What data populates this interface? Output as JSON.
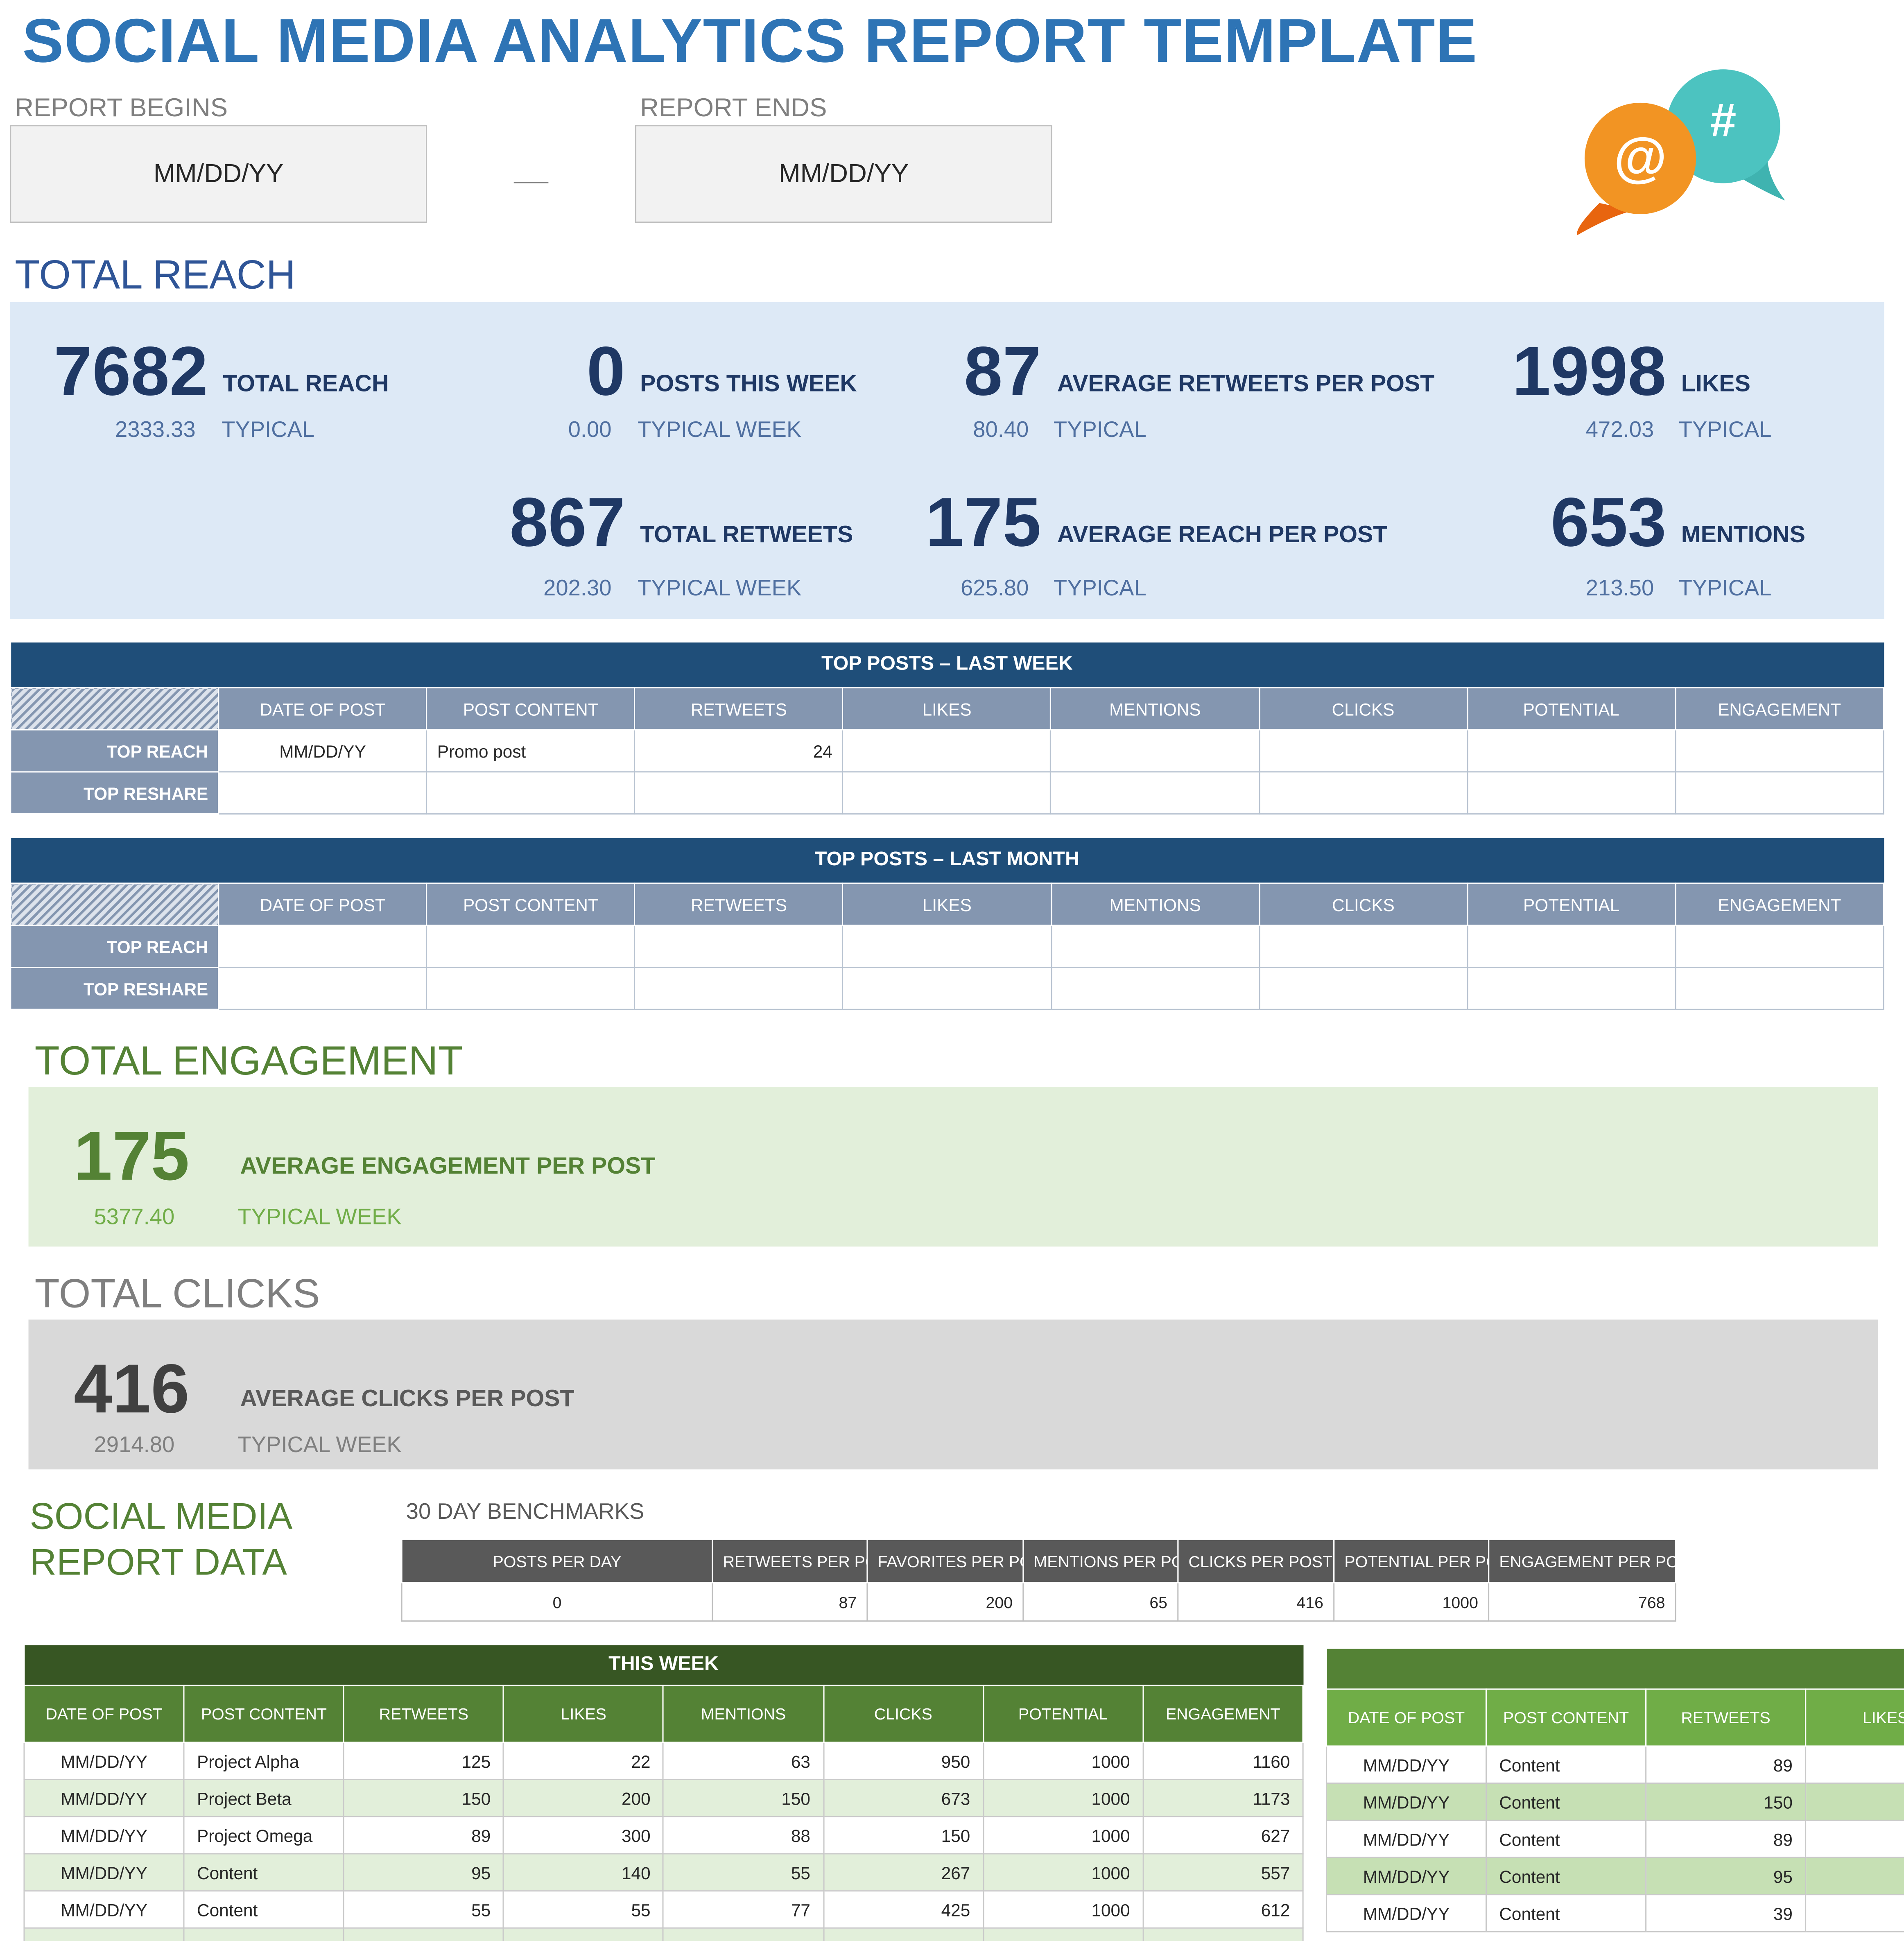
{
  "title": "SOCIAL MEDIA ANALYTICS REPORT TEMPLATE",
  "dates": {
    "begins_label": "REPORT BEGINS",
    "begins_value": "MM/DD/YY",
    "ends_label": "REPORT ENDS",
    "ends_value": "MM/DD/YY"
  },
  "colors": {
    "title": "#2e74b5",
    "reach_bg": "#dde9f6",
    "engagement_bg": "#e2efda",
    "clicks_bg": "#d9d9d9",
    "navy": "#1f3864",
    "green": "#548235"
  },
  "logo": {
    "at": "@",
    "hash": "#"
  },
  "reach": {
    "heading": "TOTAL REACH",
    "metrics": [
      {
        "value": "7682",
        "label": "TOTAL REACH",
        "typical_value": "2333.33",
        "typical_label": "TYPICAL"
      },
      {
        "value": "0",
        "label": "POSTS THIS WEEK",
        "typical_value": "0.00",
        "typical_label": "TYPICAL WEEK"
      },
      {
        "value": "87",
        "label": "AVERAGE RETWEETS PER POST",
        "typical_value": "80.40",
        "typical_label": "TYPICAL"
      },
      {
        "value": "1998",
        "label": "LIKES",
        "typical_value": "472.03",
        "typical_label": "TYPICAL"
      },
      {
        "value": "867",
        "label": "TOTAL RETWEETS",
        "typical_value": "202.30",
        "typical_label": "TYPICAL WEEK"
      },
      {
        "value": "175",
        "label": "AVERAGE REACH PER POST",
        "typical_value": "625.80",
        "typical_label": "TYPICAL"
      },
      {
        "value": "653",
        "label": "MENTIONS",
        "typical_value": "213.50",
        "typical_label": "TYPICAL"
      }
    ]
  },
  "top_posts_columns": [
    "DATE OF POST",
    "POST CONTENT",
    "RETWEETS",
    "LIKES",
    "MENTIONS",
    "CLICKS",
    "POTENTIAL",
    "ENGAGEMENT"
  ],
  "top_posts_week": {
    "title": "TOP POSTS – LAST WEEK",
    "rows": [
      {
        "label": "TOP REACH",
        "cells": [
          "MM/DD/YY",
          "Promo post",
          "24",
          "",
          "",
          "",
          "",
          ""
        ]
      },
      {
        "label": "TOP RESHARE",
        "cells": [
          "",
          "",
          "",
          "",
          "",
          "",
          "",
          ""
        ]
      }
    ]
  },
  "top_posts_month": {
    "title": "TOP POSTS – LAST MONTH",
    "rows": [
      {
        "label": "TOP REACH",
        "cells": [
          "",
          "",
          "",
          "",
          "",
          "",
          "",
          ""
        ]
      },
      {
        "label": "TOP RESHARE",
        "cells": [
          "",
          "",
          "",
          "",
          "",
          "",
          "",
          ""
        ]
      }
    ]
  },
  "engagement": {
    "heading": "TOTAL ENGAGEMENT",
    "value": "175",
    "label": "AVERAGE ENGAGEMENT PER POST",
    "typical_value": "5377.40",
    "typical_label": "TYPICAL WEEK"
  },
  "clicks": {
    "heading": "TOTAL CLICKS",
    "value": "416",
    "label": "AVERAGE CLICKS PER POST",
    "typical_value": "2914.80",
    "typical_label": "TYPICAL WEEK"
  },
  "report_data": {
    "heading_line1": "SOCIAL MEDIA",
    "heading_line2": "REPORT DATA"
  },
  "benchmarks": {
    "title": "30 DAY BENCHMARKS",
    "headers": [
      "POSTS PER DAY",
      "RETWEETS PER POST",
      "FAVORITES PER POST",
      "MENTIONS PER POST",
      "CLICKS PER POST",
      "POTENTIAL PER POST",
      "ENGAGEMENT PER POST"
    ],
    "values": [
      "0",
      "87",
      "200",
      "65",
      "416",
      "1000",
      "768"
    ]
  },
  "this_week": {
    "title": "THIS WEEK",
    "headers": [
      "DATE OF POST",
      "POST CONTENT",
      "RETWEETS",
      "LIKES",
      "MENTIONS",
      "CLICKS",
      "POTENTIAL",
      "ENGAGEMENT"
    ],
    "rows": [
      [
        "MM/DD/YY",
        "Project Alpha",
        "125",
        "22",
        "63",
        "950",
        "1000",
        "1160"
      ],
      [
        "MM/DD/YY",
        "Project Beta",
        "150",
        "200",
        "150",
        "673",
        "1000",
        "1173"
      ],
      [
        "MM/DD/YY",
        "Project Omega",
        "89",
        "300",
        "88",
        "150",
        "1000",
        "627"
      ],
      [
        "MM/DD/YY",
        "Content",
        "95",
        "140",
        "55",
        "267",
        "1000",
        "557"
      ],
      [
        "MM/DD/YY",
        "Content",
        "55",
        "55",
        "77",
        "425",
        "1000",
        "612"
      ]
    ]
  },
  "second_table": {
    "title": "",
    "headers": [
      "DATE OF POST",
      "POST CONTENT",
      "RETWEETS",
      "LIKES"
    ],
    "rows": [
      [
        "MM/DD/YY",
        "Content",
        "89",
        ""
      ],
      [
        "MM/DD/YY",
        "Content",
        "150",
        ""
      ],
      [
        "MM/DD/YY",
        "Content",
        "89",
        ""
      ],
      [
        "MM/DD/YY",
        "Content",
        "95",
        ""
      ],
      [
        "MM/DD/YY",
        "Content",
        "39",
        ""
      ]
    ]
  }
}
